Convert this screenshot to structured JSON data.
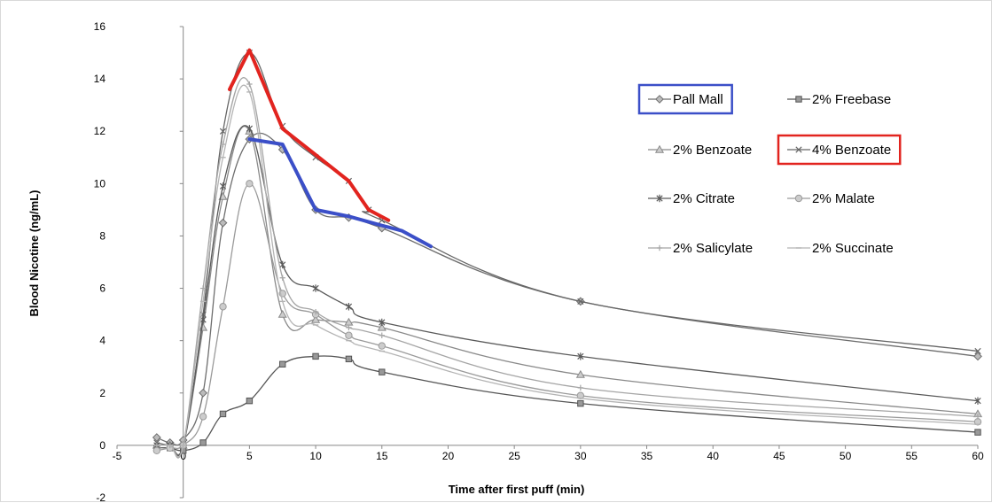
{
  "chart_data": {
    "type": "line",
    "title": "",
    "xlabel": "Time after first puff (min)",
    "ylabel": "Blood Nicotine (ng/mL)",
    "xlim": [
      -5,
      60
    ],
    "ylim": [
      -2,
      16
    ],
    "x_ticks": [
      -5,
      0,
      5,
      10,
      15,
      20,
      25,
      30,
      35,
      40,
      45,
      50,
      55,
      60
    ],
    "y_ticks": [
      -2,
      0,
      2,
      4,
      6,
      8,
      10,
      12,
      14,
      16
    ],
    "legend_placement": "top-right",
    "grid": false,
    "series": [
      {
        "name": "Pall Mall",
        "marker": "diamond",
        "color": "#6e6e6e",
        "x": [
          -2,
          -1,
          0,
          1.5,
          3,
          5,
          7.5,
          10,
          12.5,
          15,
          30,
          60
        ],
        "y": [
          0.3,
          0.1,
          0.2,
          2.0,
          8.5,
          11.7,
          11.3,
          9.0,
          8.7,
          8.3,
          5.5,
          3.4
        ]
      },
      {
        "name": "2% Freebase",
        "marker": "square",
        "color": "#555555",
        "x": [
          -2,
          -1,
          0,
          1.5,
          3,
          5,
          7.5,
          10,
          12.5,
          15,
          30,
          60
        ],
        "y": [
          -0.1,
          -0.1,
          -0.2,
          0.1,
          1.2,
          1.7,
          3.1,
          3.4,
          3.3,
          2.8,
          1.6,
          0.5
        ]
      },
      {
        "name": "2% Benzoate",
        "marker": "triangle",
        "color": "#8a8a8a",
        "x": [
          -2,
          -1,
          0,
          1.5,
          3,
          5,
          7.5,
          10,
          12.5,
          15,
          30,
          60
        ],
        "y": [
          0.0,
          0.0,
          0.0,
          4.5,
          9.5,
          12.0,
          5.0,
          4.8,
          4.7,
          4.5,
          2.7,
          1.2
        ]
      },
      {
        "name": "4% Benzoate",
        "marker": "x",
        "color": "#666666",
        "x": [
          -2,
          -1,
          0,
          1.5,
          3,
          5,
          7.5,
          10,
          12.5,
          14,
          15,
          30,
          60
        ],
        "y": [
          0.1,
          0.0,
          0.0,
          5.0,
          12.0,
          15.0,
          12.2,
          11.0,
          10.1,
          9.0,
          8.6,
          5.5,
          3.6
        ]
      },
      {
        "name": "2% Citrate",
        "marker": "star",
        "color": "#5a5a5a",
        "x": [
          -2,
          -1,
          0,
          1.5,
          3,
          5,
          7.5,
          10,
          12.5,
          15,
          30,
          60
        ],
        "y": [
          0.0,
          0.0,
          0.0,
          4.8,
          9.9,
          12.1,
          6.9,
          6.0,
          5.3,
          4.7,
          3.4,
          1.7
        ]
      },
      {
        "name": "2% Malate",
        "marker": "circle",
        "color": "#9a9a9a",
        "x": [
          -2,
          -1,
          0,
          1.5,
          3,
          5,
          7.5,
          10,
          12.5,
          15,
          30,
          60
        ],
        "y": [
          -0.2,
          -0.1,
          0.0,
          1.1,
          5.3,
          10.0,
          5.8,
          5.0,
          4.2,
          3.8,
          1.9,
          0.9
        ]
      },
      {
        "name": "2% Salicylate",
        "marker": "plus",
        "color": "#a5a5a5",
        "x": [
          -2,
          -1,
          0,
          1.5,
          3,
          5,
          7.5,
          10,
          12.5,
          15,
          30,
          60
        ],
        "y": [
          0.0,
          0.0,
          0.0,
          6.0,
          11.5,
          13.8,
          6.4,
          5.1,
          4.5,
          4.2,
          2.2,
          1.1
        ]
      },
      {
        "name": "2% Succinate",
        "marker": "dash",
        "color": "#b4b4b4",
        "x": [
          -2,
          -1,
          0,
          1.5,
          3,
          5,
          7.5,
          10,
          12.5,
          15,
          30,
          60
        ],
        "y": [
          0.0,
          0.0,
          0.0,
          5.5,
          11.0,
          13.5,
          5.5,
          4.6,
          4.0,
          3.6,
          1.8,
          0.8
        ]
      }
    ],
    "highlight_overlays": [
      {
        "series": "4% Benzoate",
        "color": "#e2241f",
        "x": [
          3.5,
          5,
          7.5,
          10,
          12.5,
          14,
          15.5
        ],
        "y": [
          13.6,
          15.1,
          12.1,
          11.1,
          10.1,
          9.0,
          8.6
        ]
      },
      {
        "series": "Pall Mall",
        "color": "#3b4fc8",
        "x": [
          5,
          7.5,
          10,
          12.5,
          15,
          16.5,
          18.7
        ],
        "y": [
          11.7,
          11.5,
          9.0,
          8.75,
          8.4,
          8.2,
          7.6
        ]
      }
    ],
    "legend_boxes": [
      {
        "series": "Pall Mall",
        "color": "#3b4fc8"
      },
      {
        "series": "4% Benzoate",
        "color": "#e2241f"
      }
    ]
  }
}
